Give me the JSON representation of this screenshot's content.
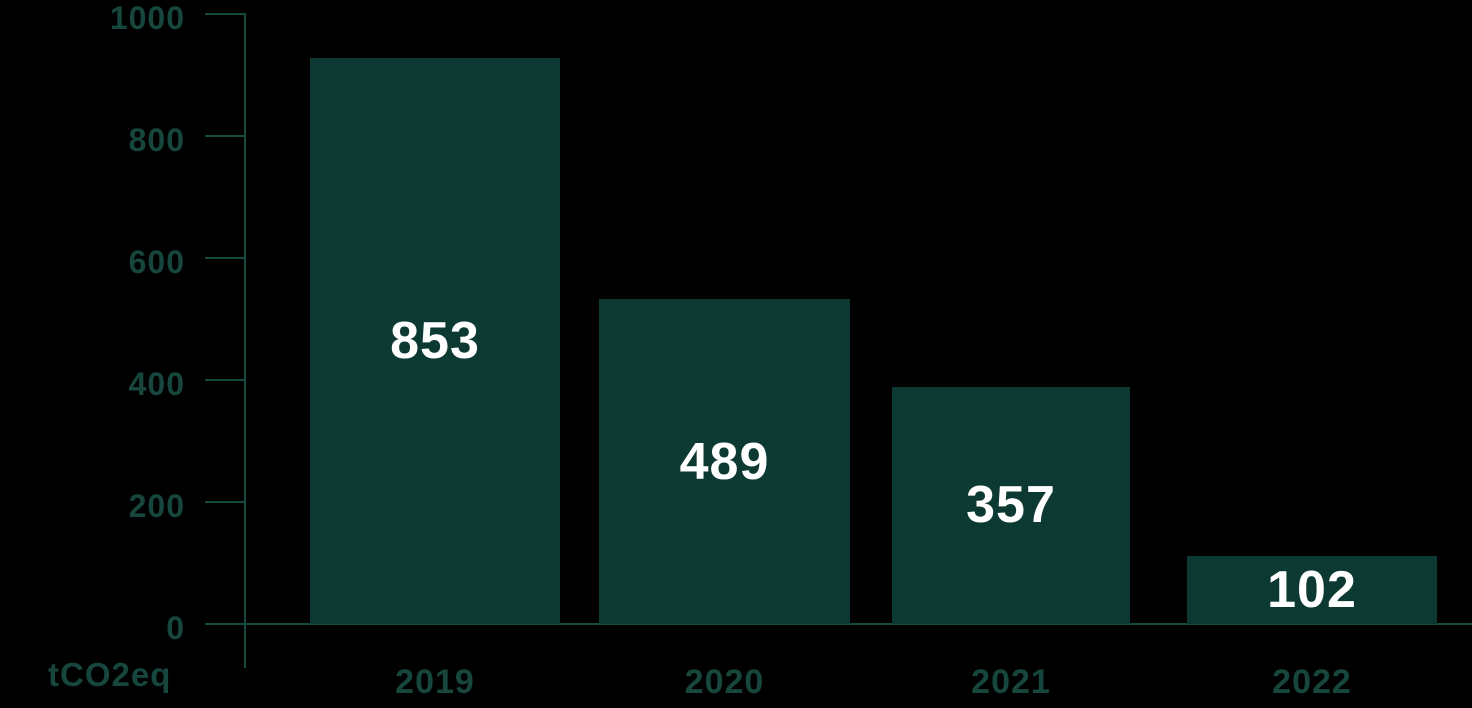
{
  "chart": {
    "background": "#000000",
    "colors": {
      "bar_fill": "#0c3a33",
      "axis_line": "#154a3f",
      "axis_text": "#17463d",
      "value_text": "#ffffff",
      "background": "#000000"
    }
  },
  "chart_data": {
    "type": "bar",
    "title": "",
    "xlabel": "",
    "ylabel": "tCO2eq",
    "categories": [
      "2019",
      "2020",
      "2021",
      "2022"
    ],
    "values": [
      853,
      489,
      357,
      102
    ],
    "value_labels": [
      "853",
      "489",
      "357",
      "102"
    ],
    "ytick_labels": [
      "0",
      "200",
      "400",
      "600",
      "800",
      "1000"
    ],
    "yticks": [
      0,
      200,
      400,
      600,
      800,
      1000
    ],
    "ylim": [
      0,
      1000
    ],
    "grid": false,
    "legend": false,
    "value_label_position": "inside-center",
    "bar_color": "#0c3a33"
  }
}
